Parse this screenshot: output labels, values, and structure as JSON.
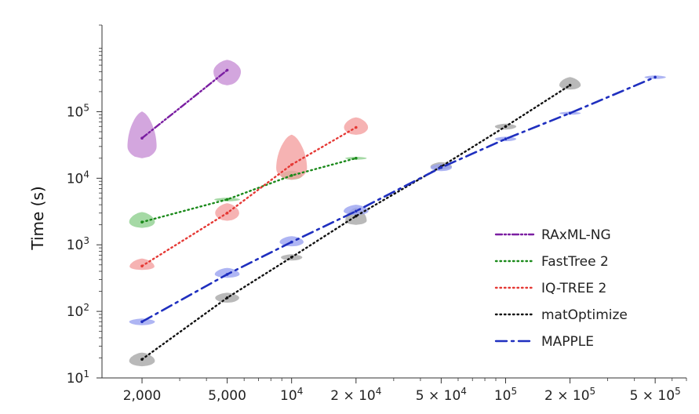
{
  "chart_data": {
    "type": "line",
    "title": "",
    "xlabel": "",
    "ylabel": "Time (s)",
    "x_scale": "log",
    "y_scale": "log",
    "xlim": [
      1300,
      700000
    ],
    "ylim": [
      10,
      2000000
    ],
    "grid": false,
    "legend_position": "bottom-right",
    "x_ticks": [
      {
        "value": 2000,
        "label": "2,000"
      },
      {
        "value": 5000,
        "label": "5,000"
      },
      {
        "value": 10000,
        "label": "10^4"
      },
      {
        "value": 20000,
        "label": "2 × 10^4"
      },
      {
        "value": 50000,
        "label": "5 × 10^4"
      },
      {
        "value": 100000,
        "label": "10^5"
      },
      {
        "value": 200000,
        "label": "2 × 10^5"
      },
      {
        "value": 500000,
        "label": "5 × 10^5"
      }
    ],
    "y_ticks": [
      {
        "value": 10,
        "label": "10^1"
      },
      {
        "value": 100,
        "label": "10^2"
      },
      {
        "value": 1000,
        "label": "10^3"
      },
      {
        "value": 10000,
        "label": "10^4"
      },
      {
        "value": 100000,
        "label": "10^5"
      }
    ],
    "series": [
      {
        "name": "RAxML-NG",
        "color": "#7b1fa2",
        "fill": "#c890d6",
        "dash": "dashdotdot",
        "x": [
          2000,
          5000
        ],
        "y": [
          40000,
          420000
        ]
      },
      {
        "name": "FastTree 2",
        "color": "#1b8a1b",
        "fill": "#8fd08f",
        "dash": "dotted",
        "x": [
          2000,
          5000,
          10000,
          20000
        ],
        "y": [
          2200,
          4800,
          11000,
          20000
        ]
      },
      {
        "name": "IQ-TREE 2",
        "color": "#e53935",
        "fill": "#f4a0a0",
        "dash": "dotted",
        "x": [
          2000,
          5000,
          10000,
          20000
        ],
        "y": [
          480,
          3000,
          16000,
          58000
        ]
      },
      {
        "name": "matOptimize",
        "color": "#111111",
        "fill": "#a8a8a8",
        "dash": "dotted",
        "x": [
          2000,
          5000,
          10000,
          20000,
          50000,
          100000,
          200000
        ],
        "y": [
          19,
          160,
          650,
          2700,
          15000,
          60000,
          250000
        ]
      },
      {
        "name": "MAPPLE",
        "color": "#1f2fbf",
        "fill": "#9aa3f0",
        "dash": "dashdot",
        "x": [
          2000,
          5000,
          10000,
          20000,
          50000,
          100000,
          200000,
          500000
        ],
        "y": [
          70,
          360,
          1100,
          3200,
          14500,
          39000,
          95000,
          330000
        ]
      }
    ],
    "violins": [
      {
        "series": 0,
        "x": 2000,
        "y_low": 20000,
        "y_high": 100000,
        "y_peak": 30000,
        "half_width": 0.068
      },
      {
        "series": 0,
        "x": 5000,
        "y_low": 250000,
        "y_high": 600000,
        "y_peak": 400000,
        "half_width": 0.064
      },
      {
        "series": 1,
        "x": 2000,
        "y_low": 1800,
        "y_high": 3100,
        "y_peak": 2200,
        "half_width": 0.06
      },
      {
        "series": 1,
        "x": 5000,
        "y_low": 4500,
        "y_high": 5100,
        "y_peak": 4800,
        "half_width": 0.06
      },
      {
        "series": 1,
        "x": 10000,
        "y_low": 9500,
        "y_high": 13000,
        "y_peak": 11000,
        "half_width": 0.05
      },
      {
        "series": 1,
        "x": 20000,
        "y_low": 19000,
        "y_high": 21000,
        "y_peak": 20000,
        "half_width": 0.05
      },
      {
        "series": 2,
        "x": 2000,
        "y_low": 420,
        "y_high": 620,
        "y_peak": 470,
        "half_width": 0.058
      },
      {
        "series": 2,
        "x": 5000,
        "y_low": 2300,
        "y_high": 4200,
        "y_peak": 3000,
        "half_width": 0.056
      },
      {
        "series": 2,
        "x": 10000,
        "y_low": 9500,
        "y_high": 45000,
        "y_peak": 14000,
        "half_width": 0.072
      },
      {
        "series": 2,
        "x": 20000,
        "y_low": 45000,
        "y_high": 82000,
        "y_peak": 58000,
        "half_width": 0.056
      },
      {
        "series": 3,
        "x": 2000,
        "y_low": 15,
        "y_high": 24,
        "y_peak": 18,
        "half_width": 0.06
      },
      {
        "series": 3,
        "x": 5000,
        "y_low": 135,
        "y_high": 190,
        "y_peak": 160,
        "half_width": 0.056
      },
      {
        "series": 3,
        "x": 10000,
        "y_low": 580,
        "y_high": 720,
        "y_peak": 650,
        "half_width": 0.05
      },
      {
        "series": 3,
        "x": 20000,
        "y_low": 2000,
        "y_high": 3600,
        "y_peak": 2300,
        "half_width": 0.05
      },
      {
        "series": 3,
        "x": 50000,
        "y_low": 13500,
        "y_high": 17500,
        "y_peak": 15000,
        "half_width": 0.05
      },
      {
        "series": 3,
        "x": 100000,
        "y_low": 54000,
        "y_high": 66000,
        "y_peak": 60000,
        "half_width": 0.05
      },
      {
        "series": 3,
        "x": 200000,
        "y_low": 215000,
        "y_high": 330000,
        "y_peak": 250000,
        "half_width": 0.05
      },
      {
        "series": 4,
        "x": 2000,
        "y_low": 62,
        "y_high": 78,
        "y_peak": 70,
        "half_width": 0.06
      },
      {
        "series": 4,
        "x": 5000,
        "y_low": 320,
        "y_high": 450,
        "y_peak": 360,
        "half_width": 0.058
      },
      {
        "series": 4,
        "x": 10000,
        "y_low": 950,
        "y_high": 1350,
        "y_peak": 1100,
        "half_width": 0.056
      },
      {
        "series": 4,
        "x": 20000,
        "y_low": 2800,
        "y_high": 4000,
        "y_peak": 3200,
        "half_width": 0.058
      },
      {
        "series": 4,
        "x": 50000,
        "y_low": 12800,
        "y_high": 16500,
        "y_peak": 14500,
        "half_width": 0.05
      },
      {
        "series": 4,
        "x": 100000,
        "y_low": 36000,
        "y_high": 42000,
        "y_peak": 39000,
        "half_width": 0.05
      },
      {
        "series": 4,
        "x": 200000,
        "y_low": 90000,
        "y_high": 100000,
        "y_peak": 95000,
        "half_width": 0.05
      },
      {
        "series": 4,
        "x": 500000,
        "y_low": 310000,
        "y_high": 350000,
        "y_peak": 330000,
        "half_width": 0.05
      }
    ]
  }
}
